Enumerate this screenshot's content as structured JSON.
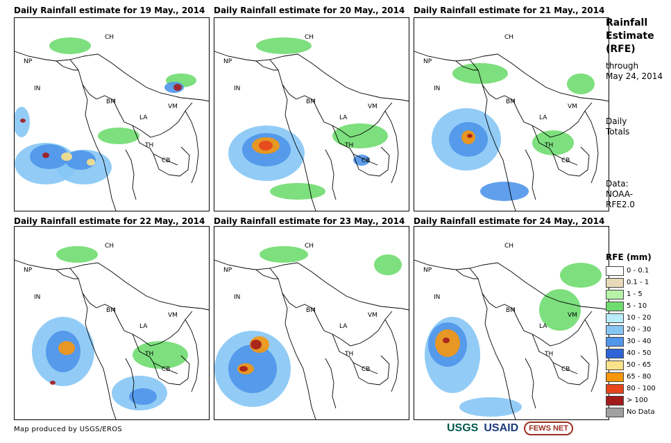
{
  "panels": [
    {
      "title": "Daily Rainfall estimate for 19 May., 2014"
    },
    {
      "title": "Daily Rainfall estimate for 20 May., 2014"
    },
    {
      "title": "Daily Rainfall estimate for 21 May., 2014"
    },
    {
      "title": "Daily Rainfall estimate for 22 May., 2014"
    },
    {
      "title": "Daily Rainfall estimate for 23 May., 2014"
    },
    {
      "title": "Daily Rainfall estimate for 24 May., 2014"
    }
  ],
  "country_labels": [
    "CH",
    "NP",
    "IN",
    "BM",
    "VM",
    "LA",
    "TH",
    "CB"
  ],
  "side": {
    "title_line1": "Rainfall",
    "title_line2": "Estimate",
    "title_line3": "(RFE)",
    "through": "through",
    "through_date": "May 24, 2014",
    "daily": "Daily",
    "totals": "Totals",
    "data_label": "Data:",
    "data_source1": "NOAA-",
    "data_source2": "RFE2.0"
  },
  "legend": {
    "title": "RFE (mm)",
    "items": [
      {
        "label": "0 - 0.1",
        "color": "#ffffff"
      },
      {
        "label": "0.1 - 1",
        "color": "#e8d9b8"
      },
      {
        "label": "1 - 5",
        "color": "#b7f2a8"
      },
      {
        "label": "5 - 10",
        "color": "#6fdc6f"
      },
      {
        "label": "10 - 20",
        "color": "#b8ecf8"
      },
      {
        "label": "20 - 30",
        "color": "#86c6f5"
      },
      {
        "label": "30 - 40",
        "color": "#4f95ea"
      },
      {
        "label": "40 - 50",
        "color": "#2e64d8"
      },
      {
        "label": "50 - 65",
        "color": "#fae28a"
      },
      {
        "label": "65 - 80",
        "color": "#f6970e"
      },
      {
        "label": "80 - 100",
        "color": "#e7451c"
      },
      {
        "label": "> 100",
        "color": "#a31c1c"
      },
      {
        "label": "No Data",
        "color": "#a0a0a0"
      }
    ]
  },
  "footer": {
    "credit": "Map produced by USGS/EROS",
    "logo_usgs": "USGS",
    "logo_usaid": "USAID",
    "logo_fews": "FEWS NET"
  }
}
